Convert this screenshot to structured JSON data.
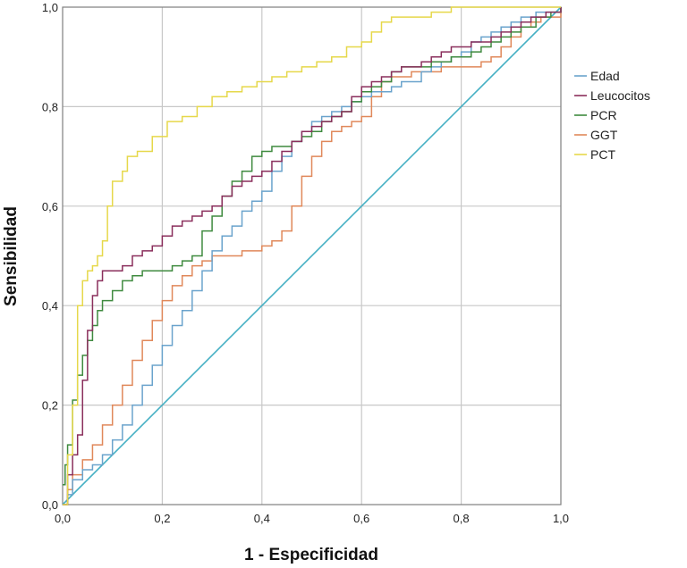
{
  "chart_data": {
    "type": "line",
    "title": "",
    "xlabel": "1 - Especificidad",
    "ylabel": "Sensibilidad",
    "xlim": [
      0,
      1
    ],
    "ylim": [
      0,
      1
    ],
    "grid": true,
    "legend_position": "right",
    "x_ticks": [
      "0,0",
      "0,2",
      "0,4",
      "0,6",
      "0,8",
      "1,0"
    ],
    "y_ticks": [
      "0,0",
      "0,2",
      "0,4",
      "0,6",
      "0,8",
      "1,0"
    ],
    "reference_line": {
      "color": "#45b0c4",
      "points": [
        [
          0,
          0
        ],
        [
          1,
          1
        ]
      ]
    },
    "series": [
      {
        "name": "Edad",
        "color": "#6aa3cc",
        "points": [
          [
            0,
            0
          ],
          [
            0.01,
            0.02
          ],
          [
            0.02,
            0.05
          ],
          [
            0.04,
            0.07
          ],
          [
            0.06,
            0.08
          ],
          [
            0.08,
            0.1
          ],
          [
            0.1,
            0.13
          ],
          [
            0.12,
            0.16
          ],
          [
            0.14,
            0.2
          ],
          [
            0.16,
            0.24
          ],
          [
            0.18,
            0.28
          ],
          [
            0.2,
            0.32
          ],
          [
            0.22,
            0.36
          ],
          [
            0.24,
            0.39
          ],
          [
            0.26,
            0.43
          ],
          [
            0.28,
            0.47
          ],
          [
            0.3,
            0.51
          ],
          [
            0.32,
            0.54
          ],
          [
            0.34,
            0.56
          ],
          [
            0.36,
            0.59
          ],
          [
            0.38,
            0.61
          ],
          [
            0.4,
            0.63
          ],
          [
            0.42,
            0.67
          ],
          [
            0.44,
            0.7
          ],
          [
            0.46,
            0.73
          ],
          [
            0.48,
            0.75
          ],
          [
            0.5,
            0.77
          ],
          [
            0.52,
            0.78
          ],
          [
            0.54,
            0.79
          ],
          [
            0.56,
            0.8
          ],
          [
            0.58,
            0.81
          ],
          [
            0.6,
            0.82
          ],
          [
            0.62,
            0.83
          ],
          [
            0.64,
            0.83
          ],
          [
            0.66,
            0.84
          ],
          [
            0.68,
            0.85
          ],
          [
            0.7,
            0.85
          ],
          [
            0.72,
            0.87
          ],
          [
            0.74,
            0.88
          ],
          [
            0.76,
            0.89
          ],
          [
            0.78,
            0.9
          ],
          [
            0.8,
            0.91
          ],
          [
            0.82,
            0.93
          ],
          [
            0.84,
            0.94
          ],
          [
            0.86,
            0.95
          ],
          [
            0.88,
            0.96
          ],
          [
            0.9,
            0.97
          ],
          [
            0.92,
            0.98
          ],
          [
            0.95,
            0.99
          ],
          [
            1.0,
            1.0
          ]
        ]
      },
      {
        "name": "Leucocitos",
        "color": "#8a2f5c",
        "points": [
          [
            0,
            0
          ],
          [
            0.01,
            0.06
          ],
          [
            0.02,
            0.1
          ],
          [
            0.03,
            0.14
          ],
          [
            0.04,
            0.25
          ],
          [
            0.05,
            0.35
          ],
          [
            0.06,
            0.42
          ],
          [
            0.07,
            0.45
          ],
          [
            0.08,
            0.47
          ],
          [
            0.1,
            0.47
          ],
          [
            0.12,
            0.48
          ],
          [
            0.14,
            0.5
          ],
          [
            0.16,
            0.51
          ],
          [
            0.18,
            0.52
          ],
          [
            0.2,
            0.54
          ],
          [
            0.22,
            0.56
          ],
          [
            0.24,
            0.57
          ],
          [
            0.26,
            0.58
          ],
          [
            0.28,
            0.59
          ],
          [
            0.3,
            0.6
          ],
          [
            0.32,
            0.62
          ],
          [
            0.34,
            0.64
          ],
          [
            0.36,
            0.65
          ],
          [
            0.38,
            0.66
          ],
          [
            0.4,
            0.67
          ],
          [
            0.42,
            0.69
          ],
          [
            0.44,
            0.71
          ],
          [
            0.46,
            0.73
          ],
          [
            0.48,
            0.75
          ],
          [
            0.5,
            0.76
          ],
          [
            0.52,
            0.77
          ],
          [
            0.54,
            0.78
          ],
          [
            0.56,
            0.79
          ],
          [
            0.58,
            0.82
          ],
          [
            0.6,
            0.84
          ],
          [
            0.62,
            0.85
          ],
          [
            0.64,
            0.86
          ],
          [
            0.66,
            0.87
          ],
          [
            0.68,
            0.88
          ],
          [
            0.7,
            0.88
          ],
          [
            0.72,
            0.89
          ],
          [
            0.74,
            0.9
          ],
          [
            0.76,
            0.91
          ],
          [
            0.78,
            0.92
          ],
          [
            0.8,
            0.92
          ],
          [
            0.82,
            0.93
          ],
          [
            0.84,
            0.93
          ],
          [
            0.86,
            0.94
          ],
          [
            0.88,
            0.95
          ],
          [
            0.9,
            0.96
          ],
          [
            0.92,
            0.97
          ],
          [
            0.94,
            0.98
          ],
          [
            0.97,
            0.99
          ],
          [
            1.0,
            1.0
          ]
        ]
      },
      {
        "name": "PCR",
        "color": "#3f8a3f",
        "points": [
          [
            0,
            0.04
          ],
          [
            0.005,
            0.08
          ],
          [
            0.01,
            0.12
          ],
          [
            0.02,
            0.21
          ],
          [
            0.03,
            0.26
          ],
          [
            0.04,
            0.3
          ],
          [
            0.05,
            0.33
          ],
          [
            0.06,
            0.36
          ],
          [
            0.07,
            0.39
          ],
          [
            0.08,
            0.41
          ],
          [
            0.1,
            0.43
          ],
          [
            0.12,
            0.45
          ],
          [
            0.14,
            0.46
          ],
          [
            0.16,
            0.47
          ],
          [
            0.18,
            0.47
          ],
          [
            0.2,
            0.47
          ],
          [
            0.22,
            0.48
          ],
          [
            0.24,
            0.49
          ],
          [
            0.26,
            0.5
          ],
          [
            0.28,
            0.55
          ],
          [
            0.3,
            0.58
          ],
          [
            0.32,
            0.62
          ],
          [
            0.34,
            0.65
          ],
          [
            0.36,
            0.67
          ],
          [
            0.38,
            0.7
          ],
          [
            0.4,
            0.71
          ],
          [
            0.42,
            0.72
          ],
          [
            0.44,
            0.72
          ],
          [
            0.46,
            0.73
          ],
          [
            0.48,
            0.74
          ],
          [
            0.5,
            0.75
          ],
          [
            0.52,
            0.77
          ],
          [
            0.54,
            0.78
          ],
          [
            0.56,
            0.79
          ],
          [
            0.58,
            0.81
          ],
          [
            0.6,
            0.83
          ],
          [
            0.62,
            0.84
          ],
          [
            0.64,
            0.85
          ],
          [
            0.66,
            0.87
          ],
          [
            0.68,
            0.88
          ],
          [
            0.7,
            0.88
          ],
          [
            0.72,
            0.88
          ],
          [
            0.74,
            0.89
          ],
          [
            0.76,
            0.89
          ],
          [
            0.78,
            0.9
          ],
          [
            0.8,
            0.9
          ],
          [
            0.82,
            0.91
          ],
          [
            0.84,
            0.92
          ],
          [
            0.86,
            0.93
          ],
          [
            0.88,
            0.94
          ],
          [
            0.9,
            0.95
          ],
          [
            0.92,
            0.96
          ],
          [
            0.95,
            0.98
          ],
          [
            0.98,
            0.99
          ],
          [
            1.0,
            1.0
          ]
        ]
      },
      {
        "name": "GGT",
        "color": "#e0885a",
        "points": [
          [
            0,
            0
          ],
          [
            0.01,
            0.03
          ],
          [
            0.02,
            0.06
          ],
          [
            0.04,
            0.09
          ],
          [
            0.06,
            0.12
          ],
          [
            0.08,
            0.16
          ],
          [
            0.1,
            0.2
          ],
          [
            0.12,
            0.24
          ],
          [
            0.14,
            0.29
          ],
          [
            0.16,
            0.33
          ],
          [
            0.18,
            0.37
          ],
          [
            0.2,
            0.41
          ],
          [
            0.22,
            0.44
          ],
          [
            0.24,
            0.46
          ],
          [
            0.26,
            0.48
          ],
          [
            0.28,
            0.49
          ],
          [
            0.3,
            0.5
          ],
          [
            0.32,
            0.5
          ],
          [
            0.34,
            0.5
          ],
          [
            0.36,
            0.51
          ],
          [
            0.38,
            0.51
          ],
          [
            0.4,
            0.52
          ],
          [
            0.42,
            0.53
          ],
          [
            0.44,
            0.55
          ],
          [
            0.46,
            0.6
          ],
          [
            0.48,
            0.66
          ],
          [
            0.5,
            0.7
          ],
          [
            0.52,
            0.73
          ],
          [
            0.54,
            0.75
          ],
          [
            0.56,
            0.76
          ],
          [
            0.58,
            0.77
          ],
          [
            0.6,
            0.78
          ],
          [
            0.62,
            0.82
          ],
          [
            0.64,
            0.85
          ],
          [
            0.66,
            0.86
          ],
          [
            0.68,
            0.86
          ],
          [
            0.7,
            0.87
          ],
          [
            0.72,
            0.87
          ],
          [
            0.74,
            0.87
          ],
          [
            0.76,
            0.88
          ],
          [
            0.78,
            0.88
          ],
          [
            0.8,
            0.88
          ],
          [
            0.82,
            0.88
          ],
          [
            0.84,
            0.89
          ],
          [
            0.86,
            0.9
          ],
          [
            0.88,
            0.92
          ],
          [
            0.9,
            0.94
          ],
          [
            0.92,
            0.96
          ],
          [
            0.94,
            0.97
          ],
          [
            0.96,
            0.98
          ],
          [
            1.0,
            1.0
          ]
        ]
      },
      {
        "name": "PCT",
        "color": "#e6d84a",
        "points": [
          [
            0,
            0
          ],
          [
            0.01,
            0.1
          ],
          [
            0.02,
            0.2
          ],
          [
            0.03,
            0.4
          ],
          [
            0.04,
            0.45
          ],
          [
            0.05,
            0.47
          ],
          [
            0.06,
            0.48
          ],
          [
            0.07,
            0.5
          ],
          [
            0.08,
            0.53
          ],
          [
            0.09,
            0.6
          ],
          [
            0.1,
            0.65
          ],
          [
            0.12,
            0.67
          ],
          [
            0.13,
            0.7
          ],
          [
            0.15,
            0.71
          ],
          [
            0.18,
            0.74
          ],
          [
            0.21,
            0.77
          ],
          [
            0.24,
            0.78
          ],
          [
            0.27,
            0.8
          ],
          [
            0.3,
            0.82
          ],
          [
            0.33,
            0.83
          ],
          [
            0.36,
            0.84
          ],
          [
            0.39,
            0.85
          ],
          [
            0.42,
            0.86
          ],
          [
            0.45,
            0.87
          ],
          [
            0.48,
            0.88
          ],
          [
            0.51,
            0.89
          ],
          [
            0.54,
            0.9
          ],
          [
            0.57,
            0.92
          ],
          [
            0.6,
            0.93
          ],
          [
            0.62,
            0.95
          ],
          [
            0.64,
            0.97
          ],
          [
            0.66,
            0.98
          ],
          [
            0.7,
            0.98
          ],
          [
            0.74,
            0.99
          ],
          [
            0.78,
            1.0
          ],
          [
            0.85,
            1.0
          ],
          [
            0.9,
            1.0
          ],
          [
            1.0,
            1.0
          ]
        ]
      }
    ]
  }
}
